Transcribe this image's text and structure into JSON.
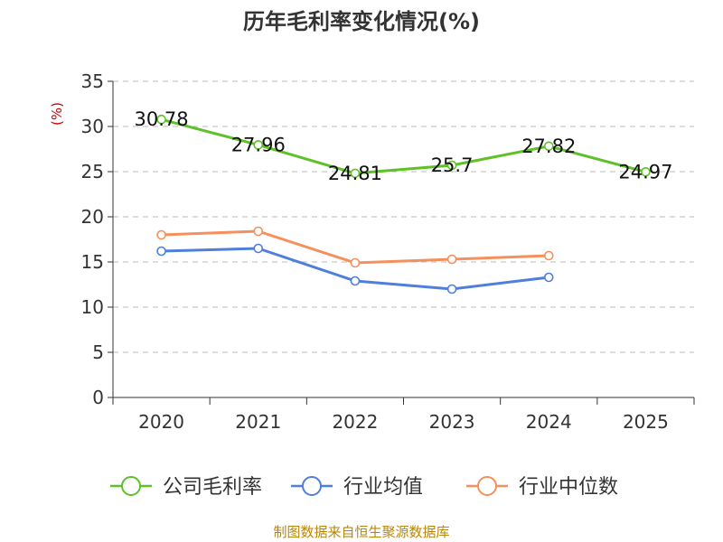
{
  "chart_data": {
    "type": "line",
    "title": "历年毛利率变化情况(%)",
    "ylabel": "(%)",
    "xlabel": "",
    "categories": [
      "2020",
      "2021",
      "2022",
      "2023",
      "2024",
      "2025"
    ],
    "ylim": [
      0,
      35
    ],
    "yticks": [
      "0",
      "5",
      "10",
      "15",
      "20",
      "25",
      "30",
      "35"
    ],
    "grid": true,
    "legend_position": "bottom",
    "series": [
      {
        "name": "公司毛利率",
        "color": "#5ec128",
        "values": [
          30.78,
          27.96,
          24.81,
          25.7,
          27.82,
          24.97
        ],
        "labels": [
          "30.78",
          "27.96",
          "24.81",
          "25.7",
          "27.82",
          "24.97"
        ]
      },
      {
        "name": "行业均值",
        "color": "#4f7fdb",
        "values": [
          16.2,
          16.5,
          12.9,
          12.0,
          13.3,
          null
        ]
      },
      {
        "name": "行业中位数",
        "color": "#f5905d",
        "values": [
          18.0,
          18.4,
          14.9,
          15.3,
          15.7,
          null
        ]
      }
    ],
    "source": "制图数据来自恒生聚源数据库"
  }
}
